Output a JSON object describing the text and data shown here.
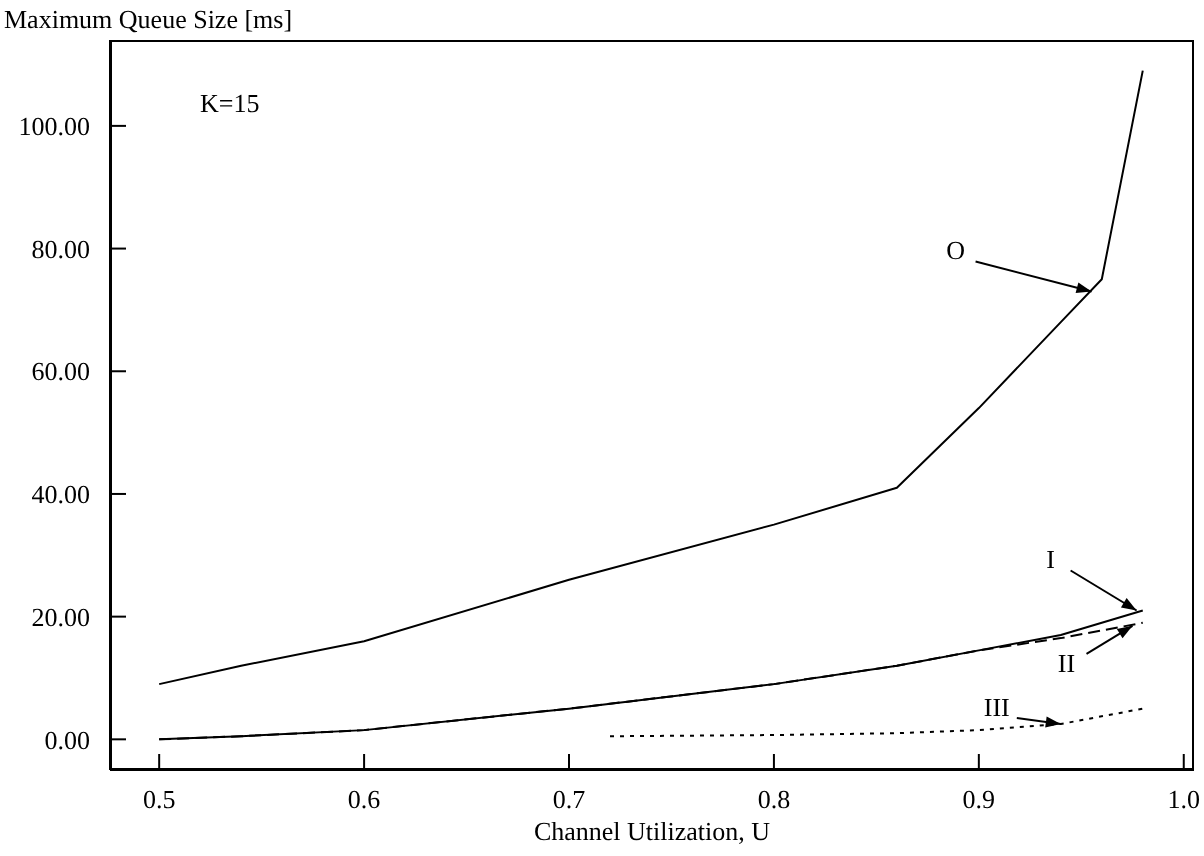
{
  "chart_data": {
    "type": "line",
    "ylabel": "Maximum Queue Size [ms]",
    "xlabel": "Channel Utilization, U",
    "xlim": [
      0.476,
      1.005
    ],
    "xticks": [
      0.5,
      0.6,
      0.7,
      0.8,
      0.9,
      {
        "value": 1.0,
        "label": "1.0"
      }
    ],
    "ylim": [
      -5,
      114
    ],
    "yticks": [
      {
        "value": 0,
        "label": "0.00"
      },
      {
        "value": 20,
        "label": "20.00"
      },
      {
        "value": 40,
        "label": "40.00"
      },
      {
        "value": 60,
        "label": "60.00"
      },
      {
        "value": 80,
        "label": "80.00"
      },
      {
        "value": 100,
        "label": "100.00"
      }
    ],
    "grid": false,
    "legend": false,
    "marker": "none",
    "series": [
      {
        "color": "#000000",
        "line_style": "solid",
        "x": [
          0.5,
          0.54,
          0.6,
          0.7,
          0.8,
          0.86,
          0.9,
          0.94,
          0.96,
          0.98
        ],
        "values": [
          9,
          12,
          16,
          26,
          35,
          41,
          54,
          68,
          75,
          109
        ]
      },
      {
        "color": "#000000",
        "line_style": "solid",
        "x": [
          0.5,
          0.54,
          0.6,
          0.7,
          0.8,
          0.86,
          0.9,
          0.94,
          0.98
        ],
        "values": [
          0,
          0.5,
          1.5,
          5,
          9,
          12,
          14.5,
          17,
          21
        ]
      },
      {
        "color": "#000000",
        "line_style": "dashed",
        "x": [
          0.5,
          0.54,
          0.6,
          0.7,
          0.8,
          0.86,
          0.9,
          0.94,
          0.98
        ],
        "values": [
          0,
          0.5,
          1.5,
          5,
          9,
          12,
          14.5,
          16.5,
          19
        ]
      },
      {
        "color": "#000000",
        "line_style": "dotted",
        "x": [
          0.72,
          0.8,
          0.86,
          0.9,
          0.94,
          0.98
        ],
        "values": [
          0.5,
          0.7,
          1,
          1.5,
          2.5,
          5
        ]
      }
    ],
    "annotations": [
      "K=15",
      {
        "text": "O",
        "x": 0.955,
        "y": 73
      },
      {
        "text": "I",
        "x": 0.977,
        "y": 21
      },
      {
        "text": "II",
        "x": 0.975,
        "y": 18.5
      },
      {
        "text": "III",
        "x": 0.94,
        "y": 2.5
      }
    ]
  }
}
